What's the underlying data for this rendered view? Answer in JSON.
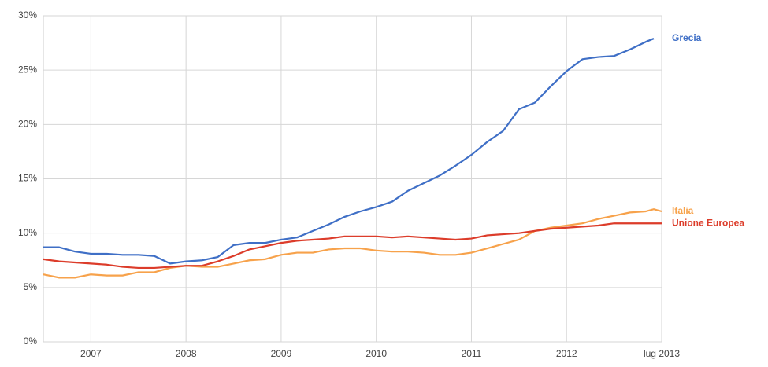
{
  "chart_data": {
    "type": "line",
    "x": [
      2006.5,
      2006.667,
      2006.833,
      2007,
      2007.167,
      2007.333,
      2007.5,
      2007.667,
      2007.833,
      2008,
      2008.167,
      2008.333,
      2008.5,
      2008.667,
      2008.833,
      2009,
      2009.167,
      2009.333,
      2009.5,
      2009.667,
      2009.833,
      2010,
      2010.167,
      2010.333,
      2010.5,
      2010.667,
      2010.833,
      2011,
      2011.167,
      2011.333,
      2011.5,
      2011.667,
      2011.833,
      2012,
      2012.167,
      2012.333,
      2012.5,
      2012.667,
      2012.833,
      2012.917,
      2013
    ],
    "series": [
      {
        "name": "Grecia",
        "color": "#3f6fc6",
        "values": [
          8.7,
          8.7,
          8.3,
          8.1,
          8.1,
          8.0,
          8.0,
          7.9,
          7.2,
          7.4,
          7.5,
          7.8,
          8.9,
          9.1,
          9.1,
          9.4,
          9.6,
          10.2,
          10.8,
          11.5,
          12.0,
          12.4,
          12.9,
          13.9,
          14.6,
          15.3,
          16.2,
          17.2,
          18.4,
          19.4,
          21.4,
          22.0,
          23.5,
          24.9,
          26.0,
          26.2,
          26.3,
          26.9,
          27.6,
          27.9,
          null
        ]
      },
      {
        "name": "Italia",
        "color": "#f7a24b",
        "values": [
          6.2,
          5.9,
          5.9,
          6.2,
          6.1,
          6.1,
          6.4,
          6.4,
          6.8,
          7.0,
          6.9,
          6.9,
          7.2,
          7.5,
          7.6,
          8.0,
          8.2,
          8.2,
          8.5,
          8.6,
          8.6,
          8.4,
          8.3,
          8.3,
          8.2,
          8.0,
          8.0,
          8.2,
          8.6,
          9.0,
          9.4,
          10.2,
          10.5,
          10.7,
          10.9,
          11.3,
          11.6,
          11.9,
          12.0,
          12.2,
          12.0
        ]
      },
      {
        "name": "Unione Europea",
        "color": "#dc3c2a",
        "values": [
          7.6,
          7.4,
          7.3,
          7.2,
          7.1,
          6.9,
          6.8,
          6.8,
          6.9,
          7.0,
          7.0,
          7.4,
          7.9,
          8.5,
          8.8,
          9.1,
          9.3,
          9.4,
          9.5,
          9.7,
          9.7,
          9.7,
          9.6,
          9.7,
          9.6,
          9.5,
          9.4,
          9.5,
          9.8,
          9.9,
          10.0,
          10.2,
          10.4,
          10.5,
          10.6,
          10.7,
          10.9,
          10.9,
          10.9,
          10.9,
          10.9
        ]
      }
    ],
    "xlim": [
      2006.5,
      2013
    ],
    "xticks": [
      2007,
      2008,
      2009,
      2010,
      2011,
      2012,
      {
        "value": 2013,
        "label": "lug 2013"
      }
    ],
    "ylim": [
      0,
      30
    ],
    "yticks": [
      {
        "value": 0,
        "label": "0%"
      },
      {
        "value": 5,
        "label": "5%"
      },
      {
        "value": 10,
        "label": "10%"
      },
      {
        "value": 15,
        "label": "15%"
      },
      {
        "value": 20,
        "label": "20%"
      },
      {
        "value": 25,
        "label": "25%"
      },
      {
        "value": 30,
        "label": "30%"
      }
    ],
    "grid": true
  }
}
